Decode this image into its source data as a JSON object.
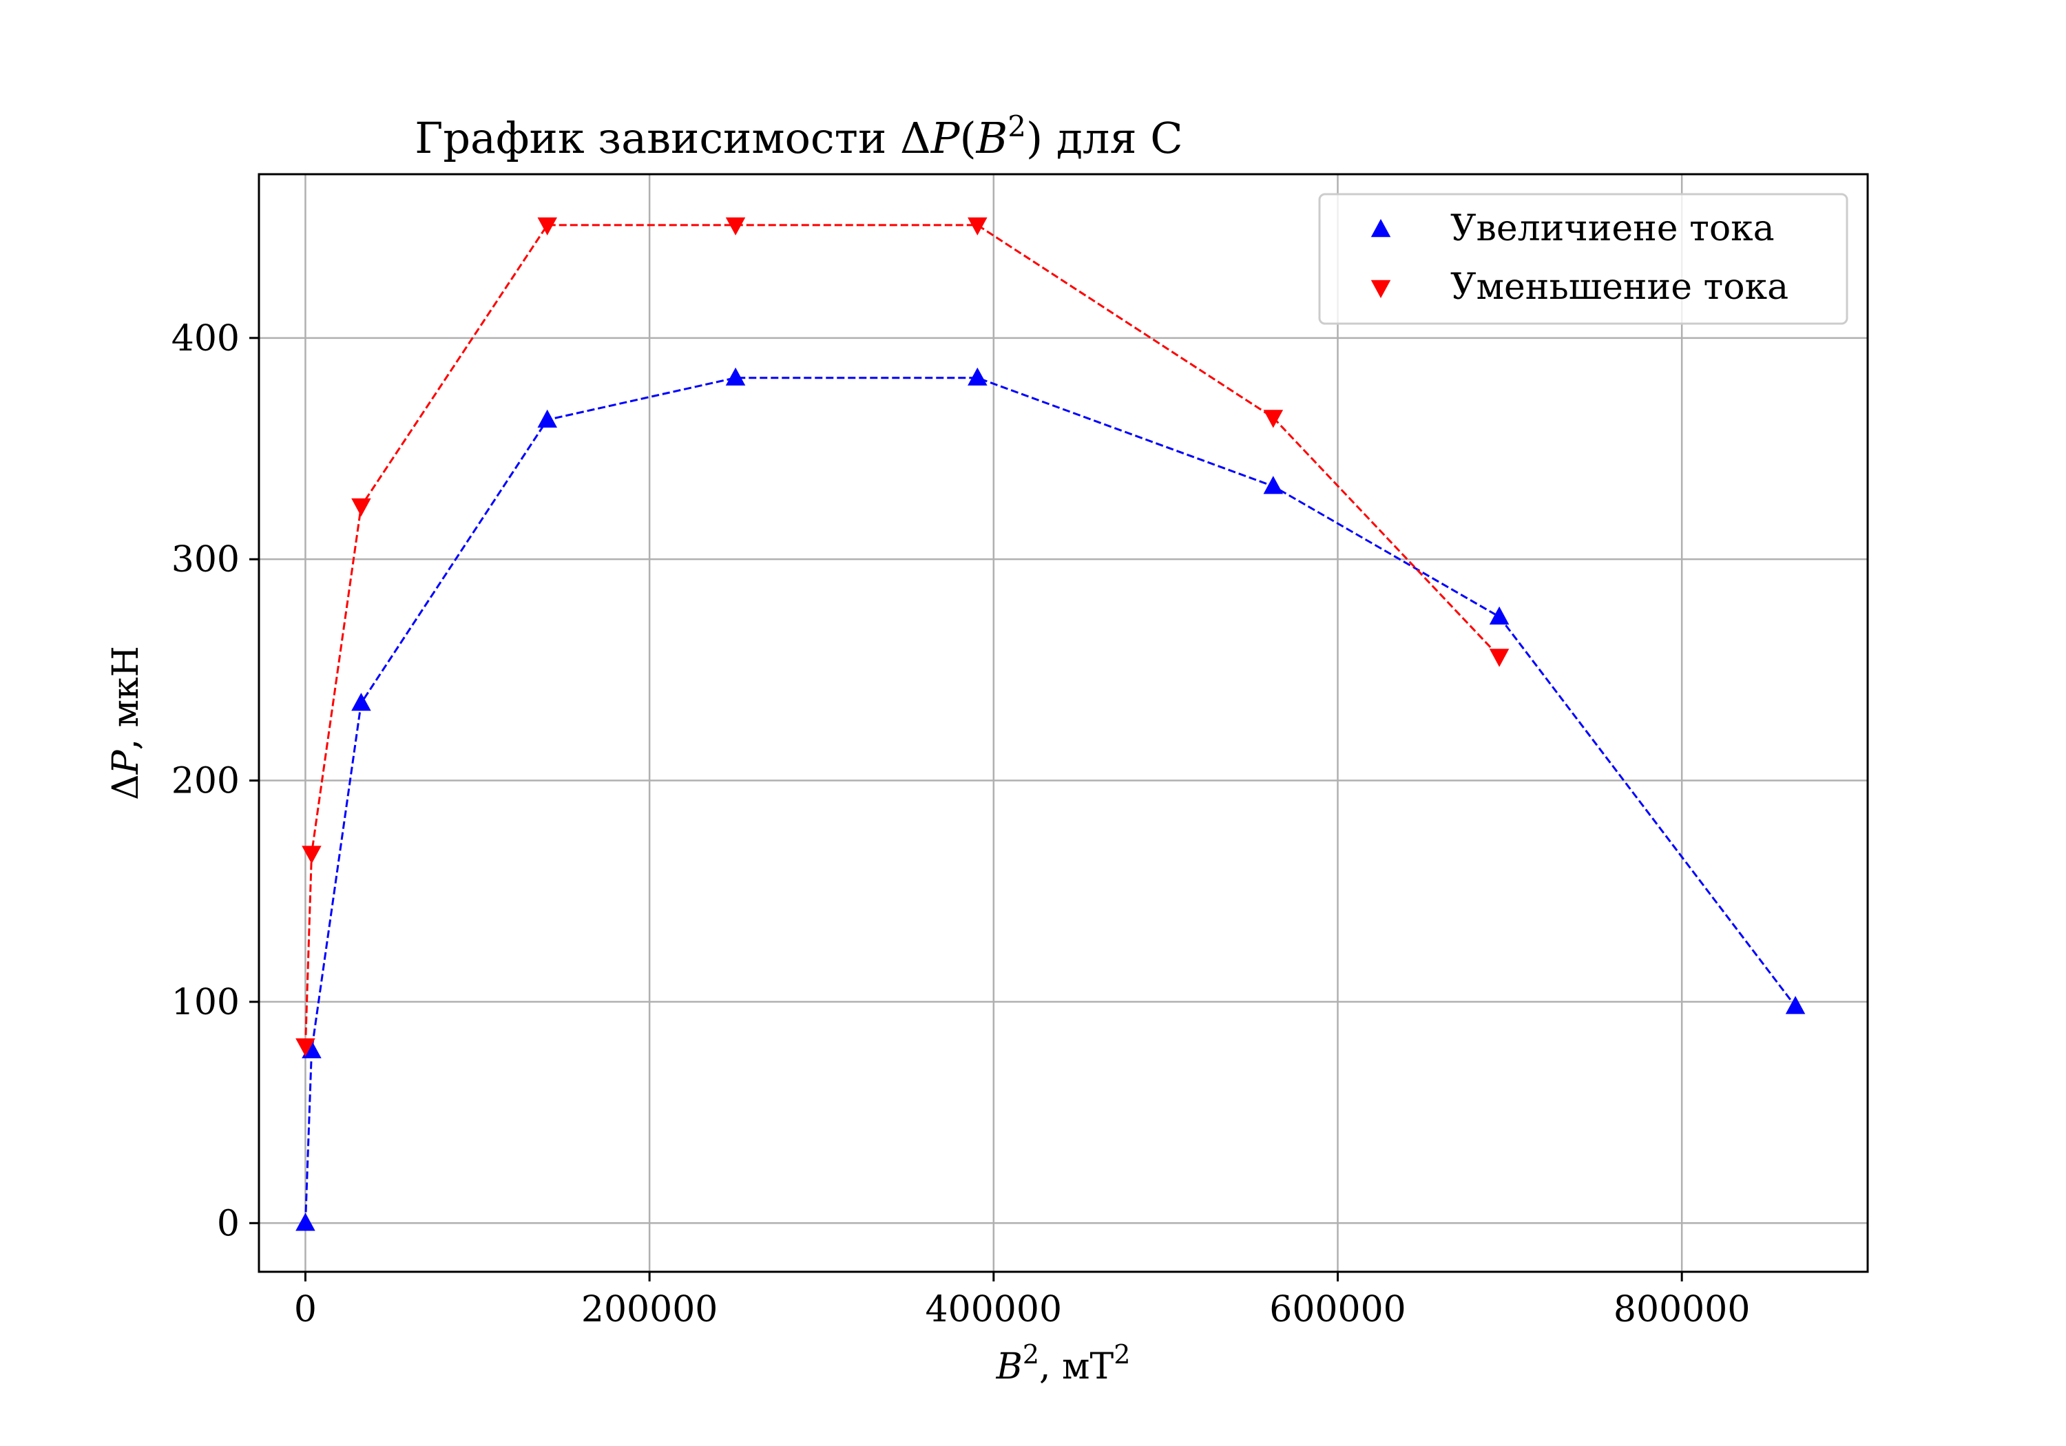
{
  "chart_data": {
    "type": "line",
    "title": {
      "prefix": "График зависимости Δ",
      "var": "P",
      "open": "(",
      "base": "B",
      "exp": "2",
      "close": ")",
      "suffix": " для C"
    },
    "xlabel": {
      "base": "B",
      "exp": "2",
      "mid": ", мТ",
      "unit_exp": "2"
    },
    "ylabel": {
      "delta": "Δ",
      "var": "P",
      "rest": ", мкН"
    },
    "xlim": [
      -27000,
      908000
    ],
    "ylim": [
      -22,
      474
    ],
    "xticks": [
      0,
      200000,
      400000,
      600000,
      800000
    ],
    "yticks": [
      0,
      100,
      200,
      300,
      400
    ],
    "xtick_labels": [
      "0",
      "200000",
      "400000",
      "600000",
      "800000"
    ],
    "ytick_labels": [
      "0",
      "100",
      "200",
      "300",
      "400"
    ],
    "grid": true,
    "legend_position": "top-right",
    "series": [
      {
        "name": "Увеличиене тока",
        "color": "#0000ff",
        "marker": "triangle-up",
        "linestyle": "dashed",
        "x": [
          0,
          3600,
          32400,
          140600,
          250000,
          390600,
          562500,
          693900,
          866000
        ],
        "y": [
          0,
          78,
          235,
          363,
          382,
          382,
          333,
          274,
          98
        ]
      },
      {
        "name": "Уменьшение тока",
        "color": "#ff0000",
        "marker": "triangle-down",
        "linestyle": "dashed",
        "x": [
          0,
          3600,
          32400,
          140600,
          250000,
          390600,
          562500,
          693900
        ],
        "y": [
          80,
          167,
          324,
          451,
          451,
          451,
          364,
          256
        ]
      }
    ]
  }
}
